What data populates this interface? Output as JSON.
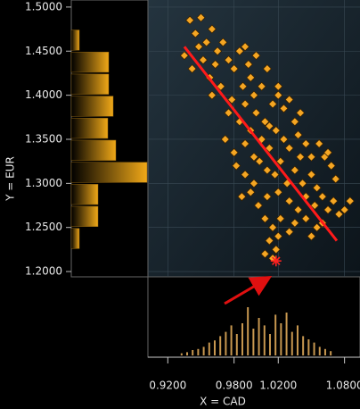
{
  "chart_data": {
    "type": "scatter",
    "x_label": "X = CAD",
    "y_label": "Y = EUR",
    "color": "#f5a623",
    "grid": true,
    "xlim": [
      0.902,
      1.094
    ],
    "ylim": [
      1.194,
      1.508
    ],
    "xticks": [
      {
        "value": 0.92,
        "label": "0.9200"
      },
      {
        "value": 0.98,
        "label": "0.9800"
      },
      {
        "value": 1.02,
        "label": "1.0200"
      },
      {
        "value": 1.08,
        "label": "1.0800"
      }
    ],
    "yticks": [
      {
        "value": 1.2,
        "label": "1.2000"
      },
      {
        "value": 1.25,
        "label": "1.2500"
      },
      {
        "value": 1.3,
        "label": "1.3000"
      },
      {
        "value": 1.35,
        "label": "1.3500"
      },
      {
        "value": 1.4,
        "label": "1.4000"
      },
      {
        "value": 1.45,
        "label": "1.4500"
      },
      {
        "value": 1.5,
        "label": "1.5000"
      }
    ],
    "x": [
      0.935,
      0.94,
      0.945,
      0.95,
      0.955,
      0.96,
      0.942,
      0.952,
      0.965,
      0.97,
      0.958,
      0.975,
      0.968,
      0.98,
      0.985,
      0.99,
      0.978,
      0.988,
      0.995,
      0.96,
      0.975,
      0.985,
      0.99,
      0.998,
      1.005,
      1.01,
      0.995,
      1.0,
      1.008,
      1.015,
      1.02,
      1.025,
      1.03,
      1.035,
      1.04,
      0.99,
      0.998,
      1.005,
      1.012,
      1.018,
      1.025,
      1.03,
      1.038,
      1.045,
      1.05,
      1.057,
      1.062,
      0.982,
      0.99,
      0.998,
      1.003,
      1.01,
      1.017,
      1.022,
      1.028,
      1.035,
      1.042,
      1.05,
      1.055,
      0.987,
      0.995,
      1.002,
      1.01,
      1.02,
      1.03,
      1.038,
      1.045,
      1.053,
      1.06,
      1.065,
      1.07,
      1.075,
      1.08,
      1.085,
      1.008,
      1.015,
      1.022,
      1.03,
      1.035,
      1.045,
      1.05,
      1.055,
      1.06,
      1.012,
      1.02,
      1.008,
      1.015,
      1.018,
      1.065,
      1.068,
      1.072,
      1.04,
      1.012,
      0.972,
      0.98,
      0.948,
      0.963,
      0.993,
      1.0,
      1.02
    ],
    "y": [
      1.445,
      1.485,
      1.47,
      1.488,
      1.46,
      1.475,
      1.43,
      1.44,
      1.45,
      1.46,
      1.42,
      1.44,
      1.41,
      1.43,
      1.45,
      1.455,
      1.395,
      1.41,
      1.42,
      1.4,
      1.38,
      1.37,
      1.39,
      1.4,
      1.41,
      1.43,
      1.36,
      1.38,
      1.37,
      1.39,
      1.4,
      1.385,
      1.395,
      1.37,
      1.38,
      1.345,
      1.33,
      1.35,
      1.34,
      1.36,
      1.35,
      1.34,
      1.355,
      1.345,
      1.33,
      1.345,
      1.33,
      1.32,
      1.31,
      1.3,
      1.325,
      1.315,
      1.31,
      1.325,
      1.3,
      1.315,
      1.3,
      1.31,
      1.295,
      1.285,
      1.29,
      1.275,
      1.285,
      1.29,
      1.28,
      1.27,
      1.285,
      1.275,
      1.285,
      1.27,
      1.28,
      1.265,
      1.27,
      1.28,
      1.26,
      1.25,
      1.26,
      1.245,
      1.255,
      1.26,
      1.24,
      1.25,
      1.255,
      1.235,
      1.24,
      1.22,
      1.215,
      1.225,
      1.335,
      1.32,
      1.305,
      1.33,
      1.365,
      1.35,
      1.335,
      1.455,
      1.435,
      1.435,
      1.445,
      1.41
    ],
    "fit": {
      "color": "#ff1a1a",
      "x": [
        0.935,
        1.073
      ],
      "y": [
        1.455,
        1.235
      ]
    },
    "highlight": {
      "color": "#ff2020",
      "x": 1.018,
      "y": 1.212
    },
    "y_hist": {
      "bins": [
        1.225,
        1.25,
        1.275,
        1.3,
        1.325,
        1.35,
        1.375,
        1.4,
        1.425,
        1.45,
        1.475
      ],
      "counts": [
        9,
        30,
        30,
        85,
        50,
        41,
        47,
        42,
        42,
        9
      ],
      "xlim": [
        0,
        85
      ]
    },
    "x_hist": {
      "bins": [
        0.93,
        0.935,
        0.94,
        0.945,
        0.95,
        0.955,
        0.96,
        0.965,
        0.97,
        0.975,
        0.98,
        0.985,
        0.99,
        0.995,
        1.0,
        1.005,
        1.01,
        1.015,
        1.02,
        1.025,
        1.03,
        1.035,
        1.04,
        1.045,
        1.05,
        1.055,
        1.06,
        1.065,
        1.07
      ],
      "counts": [
        2,
        3,
        5,
        6,
        8,
        12,
        14,
        18,
        22,
        28,
        20,
        30,
        45,
        25,
        35,
        28,
        20,
        38,
        30,
        40,
        22,
        28,
        18,
        15,
        12,
        8,
        6,
        4
      ],
      "ylim": [
        0,
        50
      ]
    }
  }
}
